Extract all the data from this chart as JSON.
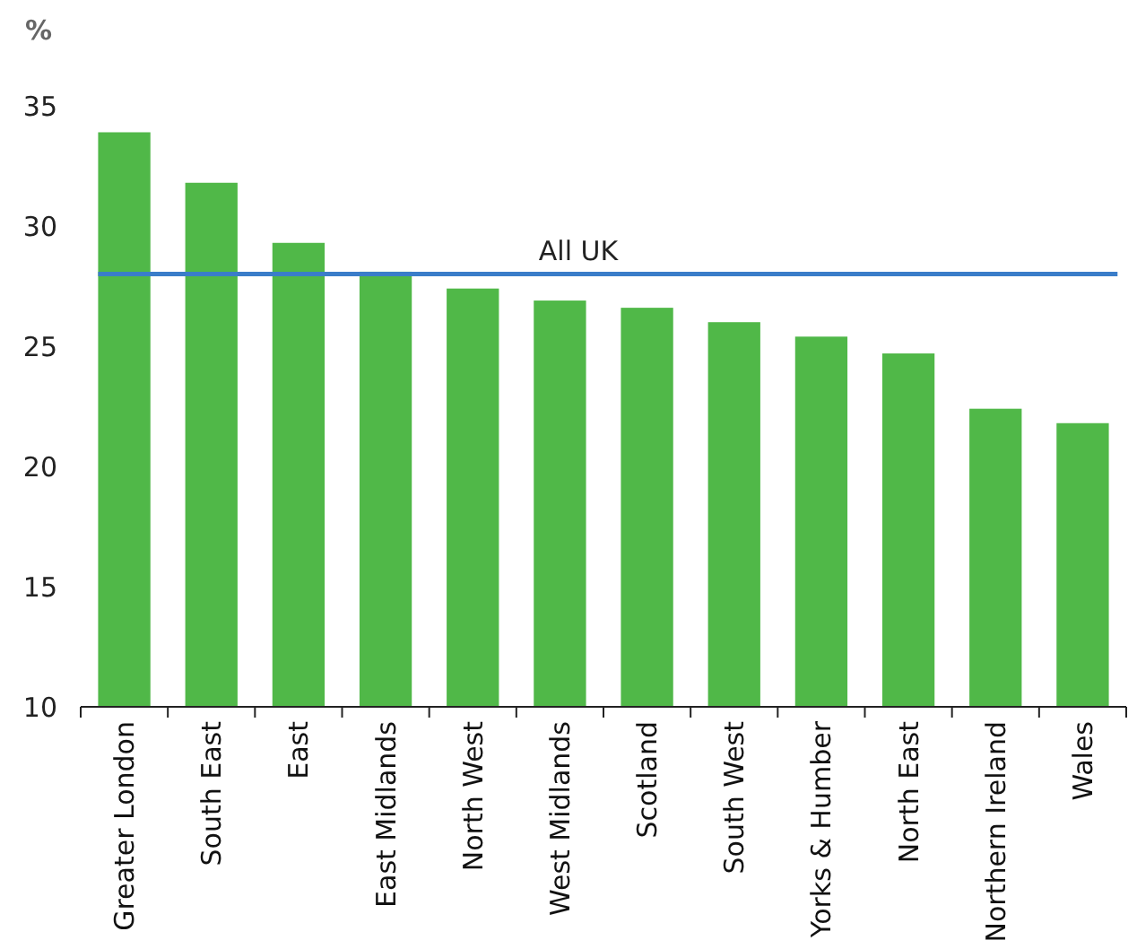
{
  "chart_data": {
    "type": "bar",
    "ylabel": "%",
    "categories": [
      "Greater London",
      "South East",
      "East",
      "East Midlands",
      "North West",
      "West Midlands",
      "Scotland",
      "South West",
      "Yorks & Humber",
      "North East",
      "Northern Ireland",
      "Wales"
    ],
    "values": [
      33.9,
      31.8,
      29.3,
      28.1,
      27.4,
      26.9,
      26.6,
      26.0,
      25.4,
      24.7,
      22.4,
      21.8
    ],
    "color": "#50b848",
    "ylim": [
      10,
      35
    ],
    "yticks": [
      10,
      15,
      20,
      25,
      30,
      35
    ],
    "grid": false,
    "ref_lines": [
      {
        "axis": "y",
        "value": 28.0,
        "label": "All UK",
        "color": "#3a7dc9"
      }
    ]
  }
}
